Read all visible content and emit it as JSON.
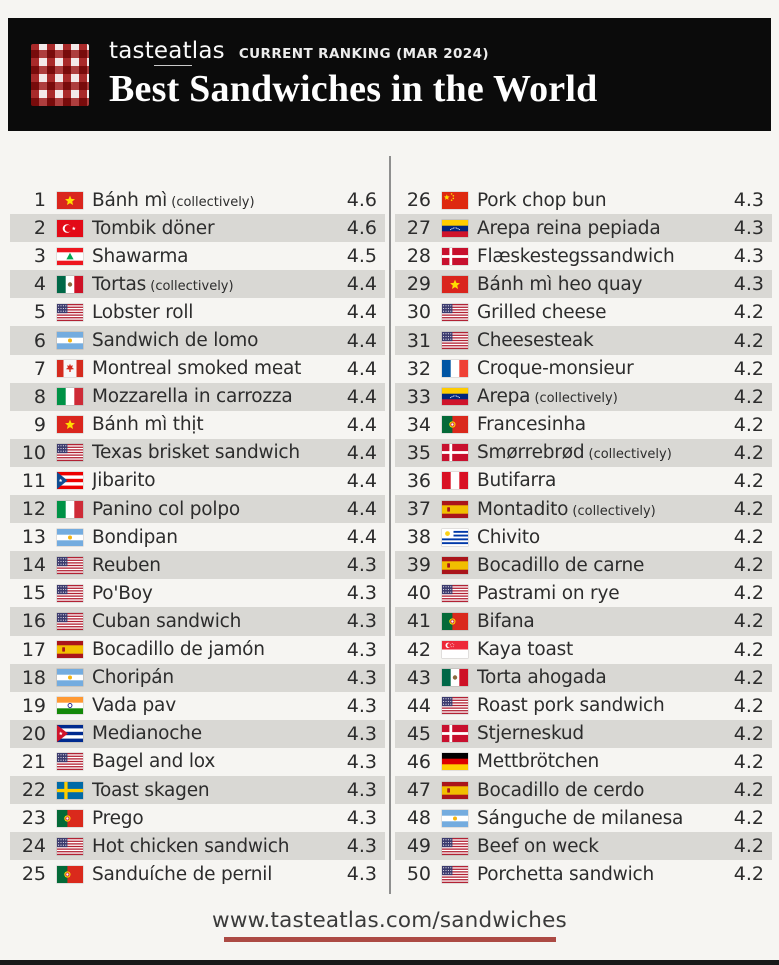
{
  "header": {
    "brand_prefix": "tast",
    "brand_eat": "eat",
    "brand_suffix": "las",
    "ranking_label": "CURRENT RANKING (MAR 2024)",
    "title": "Best Sandwiches in the World"
  },
  "colors": {
    "header_bg": "#0b0b0b",
    "stripe_gray": "#d9d8d4",
    "accent_red": "#ac4a44",
    "text": "#2c2c2c",
    "logo_red": "#a82a2a"
  },
  "footer": {
    "url": "www.tasteatlas.com/sandwiches"
  },
  "list": {
    "items": [
      {
        "rank": 1,
        "country": "vietnam",
        "name": "Bánh mì",
        "note": "(collectively)",
        "rating": "4.6"
      },
      {
        "rank": 2,
        "country": "turkey",
        "name": "Tombik döner",
        "note": "",
        "rating": "4.6"
      },
      {
        "rank": 3,
        "country": "lebanon",
        "name": "Shawarma",
        "note": "",
        "rating": "4.5"
      },
      {
        "rank": 4,
        "country": "mexico",
        "name": "Tortas",
        "note": "(collectively)",
        "rating": "4.4"
      },
      {
        "rank": 5,
        "country": "usa",
        "name": "Lobster roll",
        "note": "",
        "rating": "4.4"
      },
      {
        "rank": 6,
        "country": "argentina",
        "name": "Sandwich de lomo",
        "note": "",
        "rating": "4.4"
      },
      {
        "rank": 7,
        "country": "canada",
        "name": "Montreal smoked meat",
        "note": "",
        "rating": "4.4"
      },
      {
        "rank": 8,
        "country": "italy",
        "name": "Mozzarella in carrozza",
        "note": "",
        "rating": "4.4"
      },
      {
        "rank": 9,
        "country": "vietnam",
        "name": "Bánh mì thịt",
        "note": "",
        "rating": "4.4"
      },
      {
        "rank": 10,
        "country": "usa",
        "name": "Texas brisket sandwich",
        "note": "",
        "rating": "4.4"
      },
      {
        "rank": 11,
        "country": "puerto-rico",
        "name": "Jibarito",
        "note": "",
        "rating": "4.4"
      },
      {
        "rank": 12,
        "country": "italy",
        "name": "Panino col polpo",
        "note": "",
        "rating": "4.4"
      },
      {
        "rank": 13,
        "country": "argentina",
        "name": "Bondipan",
        "note": "",
        "rating": "4.4"
      },
      {
        "rank": 14,
        "country": "usa",
        "name": "Reuben",
        "note": "",
        "rating": "4.3"
      },
      {
        "rank": 15,
        "country": "usa",
        "name": "Po'Boy",
        "note": "",
        "rating": "4.3"
      },
      {
        "rank": 16,
        "country": "usa",
        "name": "Cuban sandwich",
        "note": "",
        "rating": "4.3"
      },
      {
        "rank": 17,
        "country": "spain",
        "name": "Bocadillo de jamón",
        "note": "",
        "rating": "4.3"
      },
      {
        "rank": 18,
        "country": "argentina",
        "name": "Choripán",
        "note": "",
        "rating": "4.3"
      },
      {
        "rank": 19,
        "country": "india",
        "name": "Vada pav",
        "note": "",
        "rating": "4.3"
      },
      {
        "rank": 20,
        "country": "cuba",
        "name": "Medianoche",
        "note": "",
        "rating": "4.3"
      },
      {
        "rank": 21,
        "country": "usa",
        "name": "Bagel and lox",
        "note": "",
        "rating": "4.3"
      },
      {
        "rank": 22,
        "country": "sweden",
        "name": "Toast skagen",
        "note": "",
        "rating": "4.3"
      },
      {
        "rank": 23,
        "country": "portugal",
        "name": "Prego",
        "note": "",
        "rating": "4.3"
      },
      {
        "rank": 24,
        "country": "usa",
        "name": "Hot chicken sandwich",
        "note": "",
        "rating": "4.3"
      },
      {
        "rank": 25,
        "country": "portugal",
        "name": "Sanduíche de pernil",
        "note": "",
        "rating": "4.3"
      },
      {
        "rank": 26,
        "country": "china",
        "name": "Pork chop bun",
        "note": "",
        "rating": "4.3"
      },
      {
        "rank": 27,
        "country": "venezuela",
        "name": "Arepa reina pepiada",
        "note": "",
        "rating": "4.3"
      },
      {
        "rank": 28,
        "country": "denmark",
        "name": "Flæskestegssandwich",
        "note": "",
        "rating": "4.3"
      },
      {
        "rank": 29,
        "country": "vietnam",
        "name": "Bánh mì heo quay",
        "note": "",
        "rating": "4.3"
      },
      {
        "rank": 30,
        "country": "usa",
        "name": "Grilled cheese",
        "note": "",
        "rating": "4.2"
      },
      {
        "rank": 31,
        "country": "usa",
        "name": "Cheesesteak",
        "note": "",
        "rating": "4.2"
      },
      {
        "rank": 32,
        "country": "france",
        "name": "Croque-monsieur",
        "note": "",
        "rating": "4.2"
      },
      {
        "rank": 33,
        "country": "venezuela",
        "name": "Arepa",
        "note": "(collectively)",
        "rating": "4.2"
      },
      {
        "rank": 34,
        "country": "portugal",
        "name": "Francesinha",
        "note": "",
        "rating": "4.2"
      },
      {
        "rank": 35,
        "country": "denmark",
        "name": "Smørrebrød",
        "note": "(collectively)",
        "rating": "4.2"
      },
      {
        "rank": 36,
        "country": "peru",
        "name": "Butifarra",
        "note": "",
        "rating": "4.2"
      },
      {
        "rank": 37,
        "country": "spain",
        "name": "Montadito",
        "note": "(collectively)",
        "rating": "4.2"
      },
      {
        "rank": 38,
        "country": "uruguay",
        "name": "Chivito",
        "note": "",
        "rating": "4.2"
      },
      {
        "rank": 39,
        "country": "spain",
        "name": "Bocadillo de carne",
        "note": "",
        "rating": "4.2"
      },
      {
        "rank": 40,
        "country": "usa",
        "name": "Pastrami on rye",
        "note": "",
        "rating": "4.2"
      },
      {
        "rank": 41,
        "country": "portugal",
        "name": "Bifana",
        "note": "",
        "rating": "4.2"
      },
      {
        "rank": 42,
        "country": "singapore",
        "name": "Kaya toast",
        "note": "",
        "rating": "4.2"
      },
      {
        "rank": 43,
        "country": "mexico",
        "name": "Torta ahogada",
        "note": "",
        "rating": "4.2"
      },
      {
        "rank": 44,
        "country": "usa",
        "name": "Roast pork sandwich",
        "note": "",
        "rating": "4.2"
      },
      {
        "rank": 45,
        "country": "denmark",
        "name": "Stjerneskud",
        "note": "",
        "rating": "4.2"
      },
      {
        "rank": 46,
        "country": "germany",
        "name": "Mettbrötchen",
        "note": "",
        "rating": "4.2"
      },
      {
        "rank": 47,
        "country": "spain",
        "name": "Bocadillo de cerdo",
        "note": "",
        "rating": "4.2"
      },
      {
        "rank": 48,
        "country": "argentina",
        "name": "Sánguche de milanesa",
        "note": "",
        "rating": "4.2"
      },
      {
        "rank": 49,
        "country": "usa",
        "name": "Beef on weck",
        "note": "",
        "rating": "4.2"
      },
      {
        "rank": 50,
        "country": "usa",
        "name": "Porchetta sandwich",
        "note": "",
        "rating": "4.2"
      }
    ]
  }
}
